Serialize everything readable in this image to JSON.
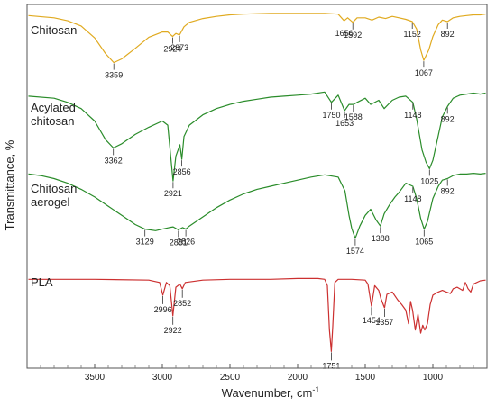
{
  "chart_data": {
    "type": "line",
    "title": "",
    "xlabel": "Wavenumber, cm-1",
    "xlabel_main": "Wavenumber, cm",
    "xlabel_sup": "-1",
    "ylabel": "Transmittance, %",
    "xlim": [
      4000,
      600
    ],
    "x_reversed": true,
    "x_ticks": [
      "3500",
      "3000",
      "2500",
      "2000",
      "1500",
      "1000"
    ],
    "y_ticks_shown": false,
    "grid": false,
    "legend": "none (inline labels)",
    "series": [
      {
        "name": "Chitosan",
        "label_lines": [
          "Chitosan"
        ],
        "color": "#e0aa20",
        "x": [
          3990,
          3800,
          3700,
          3600,
          3500,
          3420,
          3359,
          3300,
          3200,
          3100,
          3000,
          2960,
          2924,
          2900,
          2873,
          2840,
          2800,
          2700,
          2600,
          2500,
          2400,
          2300,
          2200,
          2100,
          2000,
          1900,
          1800,
          1700,
          1656,
          1630,
          1592,
          1560,
          1500,
          1450,
          1400,
          1350,
          1300,
          1250,
          1200,
          1152,
          1120,
          1090,
          1067,
          1030,
          1000,
          960,
          930,
          892,
          850,
          800,
          750,
          700,
          650,
          610
        ],
        "y": [
          0.96,
          0.93,
          0.89,
          0.82,
          0.66,
          0.45,
          0.33,
          0.38,
          0.52,
          0.67,
          0.74,
          0.74,
          0.68,
          0.72,
          0.7,
          0.81,
          0.87,
          0.92,
          0.95,
          0.97,
          0.98,
          0.985,
          0.99,
          0.99,
          0.99,
          0.99,
          0.99,
          0.98,
          0.89,
          0.93,
          0.87,
          0.93,
          0.93,
          0.9,
          0.94,
          0.92,
          0.95,
          0.93,
          0.91,
          0.88,
          0.78,
          0.5,
          0.36,
          0.5,
          0.68,
          0.84,
          0.9,
          0.88,
          0.93,
          0.95,
          0.96,
          0.97,
          0.97,
          0.98
        ]
      },
      {
        "name": "Acylated chitosan",
        "label_lines": [
          "Acylated",
          "chitosan"
        ],
        "color": "#2a8c2a",
        "x": [
          3990,
          3800,
          3700,
          3600,
          3500,
          3420,
          3362,
          3300,
          3200,
          3100,
          3000,
          2960,
          2921,
          2900,
          2870,
          2856,
          2840,
          2800,
          2700,
          2600,
          2500,
          2400,
          2300,
          2200,
          2100,
          2000,
          1900,
          1800,
          1750,
          1700,
          1653,
          1620,
          1588,
          1560,
          1500,
          1460,
          1400,
          1360,
          1300,
          1250,
          1200,
          1148,
          1120,
          1080,
          1050,
          1025,
          1000,
          960,
          930,
          892,
          850,
          800,
          750,
          700,
          650,
          610
        ],
        "y": [
          0.94,
          0.92,
          0.88,
          0.82,
          0.7,
          0.52,
          0.44,
          0.48,
          0.57,
          0.64,
          0.7,
          0.66,
          0.12,
          0.36,
          0.47,
          0.33,
          0.55,
          0.66,
          0.76,
          0.82,
          0.86,
          0.89,
          0.91,
          0.93,
          0.94,
          0.95,
          0.96,
          0.98,
          0.88,
          0.95,
          0.8,
          0.86,
          0.86,
          0.88,
          0.92,
          0.86,
          0.9,
          0.82,
          0.9,
          0.93,
          0.94,
          0.88,
          0.72,
          0.42,
          0.3,
          0.24,
          0.32,
          0.56,
          0.74,
          0.84,
          0.92,
          0.95,
          0.96,
          0.97,
          0.96,
          0.97
        ]
      },
      {
        "name": "Chitosan aerogel",
        "label_lines": [
          "Chitosan",
          "aerogel"
        ],
        "color": "#2a8c2a",
        "x": [
          3990,
          3900,
          3800,
          3700,
          3600,
          3500,
          3400,
          3300,
          3200,
          3129,
          3050,
          3000,
          2950,
          2920,
          2881,
          2850,
          2826,
          2800,
          2700,
          2600,
          2500,
          2400,
          2300,
          2200,
          2100,
          2000,
          1900,
          1800,
          1700,
          1650,
          1620,
          1600,
          1574,
          1540,
          1500,
          1460,
          1420,
          1388,
          1360,
          1320,
          1280,
          1250,
          1200,
          1148,
          1120,
          1090,
          1065,
          1040,
          1000,
          960,
          930,
          892,
          850,
          800,
          750,
          700,
          650,
          610
        ],
        "y": [
          0.96,
          0.94,
          0.9,
          0.84,
          0.76,
          0.66,
          0.54,
          0.42,
          0.3,
          0.24,
          0.22,
          0.24,
          0.26,
          0.27,
          0.23,
          0.26,
          0.24,
          0.28,
          0.4,
          0.52,
          0.62,
          0.7,
          0.76,
          0.8,
          0.84,
          0.88,
          0.92,
          0.95,
          0.92,
          0.74,
          0.42,
          0.25,
          0.12,
          0.28,
          0.42,
          0.5,
          0.36,
          0.28,
          0.44,
          0.56,
          0.66,
          0.72,
          0.84,
          0.8,
          0.64,
          0.38,
          0.24,
          0.34,
          0.64,
          0.8,
          0.88,
          0.9,
          0.94,
          0.96,
          0.96,
          0.97,
          0.96,
          0.97
        ]
      },
      {
        "name": "PLA",
        "label_lines": [
          "PLA"
        ],
        "color": "#cc3030",
        "x": [
          3990,
          3500,
          3100,
          3020,
          2996,
          2970,
          2945,
          2922,
          2900,
          2870,
          2852,
          2830,
          2700,
          2500,
          2200,
          2000,
          1850,
          1800,
          1780,
          1765,
          1751,
          1740,
          1725,
          1700,
          1600,
          1500,
          1480,
          1454,
          1430,
          1400,
          1385,
          1357,
          1340,
          1300,
          1260,
          1230,
          1200,
          1180,
          1165,
          1150,
          1130,
          1110,
          1090,
          1075,
          1060,
          1040,
          1020,
          1000,
          960,
          930,
          900,
          870,
          850,
          820,
          780,
          760,
          740,
          720,
          700,
          650,
          610
        ],
        "y": [
          0.94,
          0.94,
          0.93,
          0.9,
          0.74,
          0.9,
          0.86,
          0.48,
          0.84,
          0.88,
          0.82,
          0.9,
          0.93,
          0.94,
          0.94,
          0.95,
          0.95,
          0.94,
          0.86,
          0.3,
          0.03,
          0.35,
          0.9,
          0.94,
          0.94,
          0.93,
          0.88,
          0.6,
          0.86,
          0.8,
          0.7,
          0.58,
          0.75,
          0.78,
          0.68,
          0.62,
          0.55,
          0.38,
          0.66,
          0.55,
          0.3,
          0.5,
          0.26,
          0.36,
          0.3,
          0.38,
          0.62,
          0.74,
          0.78,
          0.8,
          0.78,
          0.76,
          0.82,
          0.84,
          0.8,
          0.9,
          0.82,
          0.78,
          0.88,
          0.92,
          0.93
        ]
      }
    ],
    "peak_labels": [
      {
        "text": "3359",
        "series": 0,
        "x": 3359
      },
      {
        "text": "2924",
        "series": 0,
        "x": 2924
      },
      {
        "text": "2873",
        "series": 0,
        "x": 2873
      },
      {
        "text": "1656",
        "series": 0,
        "x": 1656
      },
      {
        "text": "1592",
        "series": 0,
        "x": 1592
      },
      {
        "text": "1152",
        "series": 0,
        "x": 1152
      },
      {
        "text": "1067",
        "series": 0,
        "x": 1067
      },
      {
        "text": "892",
        "series": 0,
        "x": 892
      },
      {
        "text": "3362",
        "series": 1,
        "x": 3362
      },
      {
        "text": "2921",
        "series": 1,
        "x": 2921
      },
      {
        "text": "2856",
        "series": 1,
        "x": 2856
      },
      {
        "text": "1750",
        "series": 1,
        "x": 1750
      },
      {
        "text": "1653",
        "series": 1,
        "x": 1653
      },
      {
        "text": "1588",
        "series": 1,
        "x": 1588
      },
      {
        "text": "1148",
        "series": 1,
        "x": 1148
      },
      {
        "text": "1025",
        "series": 1,
        "x": 1025
      },
      {
        "text": "892",
        "series": 1,
        "x": 892
      },
      {
        "text": "3129",
        "series": 2,
        "x": 3129
      },
      {
        "text": "2881",
        "series": 2,
        "x": 2881
      },
      {
        "text": "2826",
        "series": 2,
        "x": 2826
      },
      {
        "text": "1574",
        "series": 2,
        "x": 1574
      },
      {
        "text": "1388",
        "series": 2,
        "x": 1388
      },
      {
        "text": "1148",
        "series": 2,
        "x": 1148
      },
      {
        "text": "1065",
        "series": 2,
        "x": 1065
      },
      {
        "text": "892",
        "series": 2,
        "x": 892
      },
      {
        "text": "2996",
        "series": 3,
        "x": 2996
      },
      {
        "text": "2922",
        "series": 3,
        "x": 2922
      },
      {
        "text": "2852",
        "series": 3,
        "x": 2852
      },
      {
        "text": "1751",
        "series": 3,
        "x": 1751
      },
      {
        "text": "1454",
        "series": 3,
        "x": 1454
      },
      {
        "text": "1357",
        "series": 3,
        "x": 1357
      }
    ]
  }
}
